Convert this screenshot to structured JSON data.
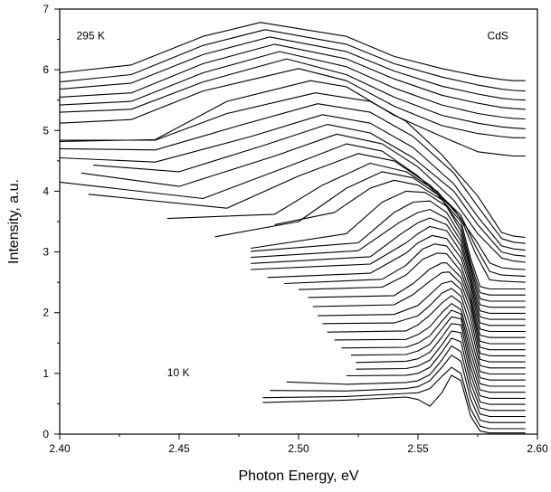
{
  "chart_data": {
    "type": "line",
    "xlabel": "Photon Energy, eV",
    "ylabel": "Intensity, a.u.",
    "xlim": [
      2.4,
      2.6
    ],
    "ylim": [
      0,
      7
    ],
    "x_ticks": [
      "2.40",
      "2.45",
      "2.50",
      "2.55",
      "2.60"
    ],
    "y_ticks": [
      "0",
      "1",
      "2",
      "3",
      "4",
      "5",
      "6",
      "7"
    ],
    "grid": false,
    "annotations": [
      {
        "text": "295 K",
        "x": 2.407,
        "y": 6.5
      },
      {
        "text": "CdS",
        "x": 2.579,
        "y": 6.5
      },
      {
        "text": "10 K",
        "x": 2.445,
        "y": 0.95
      }
    ],
    "series": [
      {
        "x": [
          2.485,
          2.52,
          2.545,
          2.55,
          2.555,
          2.56,
          2.564,
          2.568,
          2.572,
          2.576,
          2.58,
          2.585,
          2.59,
          2.595
        ],
        "y": [
          0.52,
          0.56,
          0.61,
          0.57,
          0.46,
          0.68,
          0.97,
          0.88,
          0.3,
          0.05,
          0.02,
          0.02,
          0.02,
          0.02
        ]
      },
      {
        "x": [
          2.485,
          2.52,
          2.545,
          2.55,
          2.555,
          2.56,
          2.564,
          2.568,
          2.572,
          2.576,
          2.58,
          2.585,
          2.59,
          2.595
        ],
        "y": [
          0.6,
          0.62,
          0.67,
          0.68,
          0.75,
          0.95,
          1.1,
          1.0,
          0.42,
          0.13,
          0.09,
          0.09,
          0.09,
          0.09
        ]
      },
      {
        "x": [
          2.488,
          2.52,
          2.545,
          2.55,
          2.555,
          2.56,
          2.564,
          2.568,
          2.572,
          2.576,
          2.58,
          2.585,
          2.59,
          2.595
        ],
        "y": [
          0.72,
          0.71,
          0.75,
          0.78,
          0.88,
          1.1,
          1.3,
          1.2,
          0.58,
          0.23,
          0.19,
          0.19,
          0.19,
          0.19
        ]
      },
      {
        "x": [
          2.495,
          2.52,
          2.545,
          2.55,
          2.555,
          2.56,
          2.564,
          2.568,
          2.572,
          2.576,
          2.58,
          2.585,
          2.59,
          2.595
        ],
        "y": [
          0.86,
          0.82,
          0.85,
          0.88,
          0.98,
          1.22,
          1.45,
          1.36,
          0.72,
          0.33,
          0.29,
          0.29,
          0.29,
          0.29
        ]
      },
      {
        "x": [
          2.52,
          2.545,
          2.55,
          2.555,
          2.56,
          2.564,
          2.568,
          2.572,
          2.576,
          2.58,
          2.585,
          2.59,
          2.595
        ],
        "y": [
          0.96,
          0.97,
          1.0,
          1.1,
          1.35,
          1.58,
          1.52,
          0.85,
          0.43,
          0.39,
          0.39,
          0.39,
          0.39
        ]
      },
      {
        "x": [
          2.524,
          2.545,
          2.55,
          2.555,
          2.56,
          2.564,
          2.568,
          2.572,
          2.576,
          2.58,
          2.585,
          2.59,
          2.595
        ],
        "y": [
          1.07,
          1.08,
          1.12,
          1.22,
          1.47,
          1.7,
          1.67,
          0.98,
          0.53,
          0.49,
          0.49,
          0.49,
          0.49
        ]
      },
      {
        "x": [
          2.524,
          2.545,
          2.55,
          2.555,
          2.56,
          2.564,
          2.568,
          2.572,
          2.576,
          2.58,
          2.585,
          2.59,
          2.595
        ],
        "y": [
          1.18,
          1.2,
          1.24,
          1.35,
          1.6,
          1.82,
          1.8,
          1.1,
          0.63,
          0.59,
          0.59,
          0.59,
          0.59
        ]
      },
      {
        "x": [
          2.522,
          2.545,
          2.55,
          2.555,
          2.56,
          2.564,
          2.568,
          2.572,
          2.576,
          2.58,
          2.585,
          2.59,
          2.595
        ],
        "y": [
          1.3,
          1.31,
          1.37,
          1.48,
          1.73,
          1.93,
          1.9,
          1.22,
          0.73,
          0.69,
          0.69,
          0.69,
          0.69
        ]
      },
      {
        "x": [
          2.518,
          2.545,
          2.55,
          2.555,
          2.56,
          2.564,
          2.568,
          2.572,
          2.576,
          2.58,
          2.585,
          2.59,
          2.595
        ],
        "y": [
          1.42,
          1.43,
          1.5,
          1.62,
          1.86,
          2.04,
          1.98,
          1.35,
          0.83,
          0.79,
          0.79,
          0.79,
          0.79
        ]
      },
      {
        "x": [
          2.515,
          2.545,
          2.55,
          2.555,
          2.56,
          2.564,
          2.568,
          2.572,
          2.576,
          2.58,
          2.585,
          2.59,
          2.595
        ],
        "y": [
          1.55,
          1.56,
          1.64,
          1.77,
          2.0,
          2.15,
          2.05,
          1.48,
          0.93,
          0.89,
          0.89,
          0.89,
          0.89
        ]
      },
      {
        "x": [
          2.512,
          2.545,
          2.55,
          2.555,
          2.56,
          2.564,
          2.568,
          2.572,
          2.576,
          2.58,
          2.585,
          2.59,
          2.595
        ],
        "y": [
          1.68,
          1.7,
          1.8,
          1.96,
          2.16,
          2.28,
          2.16,
          1.62,
          1.03,
          0.99,
          0.99,
          0.99,
          0.99
        ]
      },
      {
        "x": [
          2.51,
          2.54,
          2.55,
          2.555,
          2.56,
          2.564,
          2.568,
          2.572,
          2.576,
          2.58,
          2.585,
          2.59,
          2.595
        ],
        "y": [
          1.82,
          1.83,
          1.95,
          2.12,
          2.32,
          2.4,
          2.27,
          1.78,
          1.13,
          1.09,
          1.09,
          1.09,
          1.09
        ]
      },
      {
        "x": [
          2.508,
          2.54,
          2.55,
          2.555,
          2.56,
          2.564,
          2.568,
          2.572,
          2.576,
          2.58,
          2.585,
          2.59,
          2.595
        ],
        "y": [
          1.95,
          1.97,
          2.12,
          2.3,
          2.48,
          2.52,
          2.38,
          1.92,
          1.23,
          1.19,
          1.19,
          1.19,
          1.19
        ]
      },
      {
        "x": [
          2.506,
          2.54,
          2.548,
          2.555,
          2.56,
          2.563,
          2.568,
          2.572,
          2.576,
          2.58,
          2.585,
          2.59,
          2.595
        ],
        "y": [
          2.1,
          2.13,
          2.3,
          2.52,
          2.66,
          2.67,
          2.48,
          2.05,
          1.33,
          1.29,
          1.29,
          1.29,
          1.29
        ]
      },
      {
        "x": [
          2.504,
          2.54,
          2.548,
          2.555,
          2.56,
          2.562,
          2.568,
          2.572,
          2.576,
          2.58,
          2.585,
          2.59,
          2.595
        ],
        "y": [
          2.25,
          2.28,
          2.48,
          2.72,
          2.82,
          2.82,
          2.58,
          2.15,
          1.43,
          1.39,
          1.39,
          1.39,
          1.39
        ]
      },
      {
        "x": [
          2.5,
          2.535,
          2.545,
          2.552,
          2.558,
          2.562,
          2.568,
          2.572,
          2.576,
          2.58,
          2.585,
          2.59,
          2.595
        ],
        "y": [
          2.38,
          2.42,
          2.62,
          2.88,
          2.98,
          2.97,
          2.68,
          2.22,
          1.53,
          1.49,
          1.49,
          1.49,
          1.49
        ]
      },
      {
        "x": [
          2.494,
          2.535,
          2.545,
          2.552,
          2.557,
          2.562,
          2.568,
          2.572,
          2.576,
          2.58,
          2.585,
          2.59,
          2.595
        ],
        "y": [
          2.48,
          2.55,
          2.78,
          3.05,
          3.13,
          3.1,
          2.78,
          2.3,
          1.63,
          1.59,
          1.59,
          1.59,
          1.59
        ]
      },
      {
        "x": [
          2.487,
          2.53,
          2.545,
          2.55,
          2.556,
          2.562,
          2.568,
          2.572,
          2.576,
          2.58,
          2.585,
          2.59,
          2.595
        ],
        "y": [
          2.58,
          2.65,
          2.98,
          3.15,
          3.27,
          3.22,
          2.9,
          2.4,
          1.73,
          1.69,
          1.69,
          1.69,
          1.69
        ]
      },
      {
        "x": [
          2.48,
          2.53,
          2.545,
          2.55,
          2.555,
          2.562,
          2.568,
          2.572,
          2.576,
          2.58,
          2.585,
          2.59,
          2.595
        ],
        "y": [
          2.71,
          2.8,
          3.15,
          3.3,
          3.42,
          3.35,
          3.0,
          2.48,
          1.83,
          1.79,
          1.79,
          1.79,
          1.79
        ]
      },
      {
        "x": [
          2.48,
          2.53,
          2.543,
          2.55,
          2.555,
          2.562,
          2.568,
          2.572,
          2.576,
          2.58,
          2.585,
          2.59,
          2.595
        ],
        "y": [
          2.81,
          2.92,
          3.3,
          3.48,
          3.56,
          3.45,
          3.1,
          2.55,
          1.93,
          1.89,
          1.89,
          1.89,
          1.89
        ]
      },
      {
        "x": [
          2.48,
          2.525,
          2.542,
          2.55,
          2.555,
          2.562,
          2.568,
          2.572,
          2.576,
          2.58,
          2.585,
          2.59,
          2.595
        ],
        "y": [
          2.91,
          3.02,
          3.48,
          3.65,
          3.7,
          3.55,
          3.18,
          2.62,
          2.03,
          1.99,
          1.99,
          1.99,
          1.99
        ]
      },
      {
        "x": [
          2.48,
          2.525,
          2.54,
          2.548,
          2.555,
          2.562,
          2.568,
          2.572,
          2.576,
          2.58,
          2.585,
          2.59,
          2.595
        ],
        "y": [
          3.01,
          3.15,
          3.65,
          3.82,
          3.84,
          3.65,
          3.26,
          2.7,
          2.13,
          2.09,
          2.09,
          2.09,
          2.09
        ]
      },
      {
        "x": [
          2.48,
          2.52,
          2.535,
          2.545,
          2.553,
          2.562,
          2.568,
          2.572,
          2.576,
          2.58,
          2.585,
          2.59,
          2.595
        ],
        "y": [
          3.06,
          3.3,
          3.82,
          4.0,
          3.98,
          3.75,
          3.34,
          2.76,
          2.23,
          2.19,
          2.19,
          2.19,
          2.19
        ]
      },
      {
        "x": [
          2.49,
          2.515,
          2.53,
          2.54,
          2.55,
          2.56,
          2.568,
          2.572,
          2.576,
          2.58,
          2.585,
          2.59,
          2.595
        ],
        "y": [
          3.45,
          3.65,
          4.05,
          4.18,
          4.1,
          3.86,
          3.42,
          2.82,
          2.33,
          2.29,
          2.29,
          2.29,
          2.29
        ]
      },
      {
        "x": [
          2.465,
          2.5,
          2.52,
          2.535,
          2.548,
          2.558,
          2.568,
          2.572,
          2.576,
          2.58,
          2.585,
          2.59,
          2.595
        ],
        "y": [
          3.25,
          3.5,
          4.05,
          4.32,
          4.22,
          3.95,
          3.5,
          2.9,
          2.43,
          2.39,
          2.39,
          2.39,
          2.39
        ]
      },
      {
        "x": [
          2.445,
          2.49,
          2.51,
          2.53,
          2.545,
          2.558,
          2.568,
          2.574,
          2.58,
          2.585,
          2.59,
          2.595
        ],
        "y": [
          3.55,
          3.62,
          4.1,
          4.46,
          4.32,
          4.0,
          3.55,
          2.98,
          2.54,
          2.52,
          2.51,
          2.5
        ]
      },
      {
        "x": [
          2.412,
          2.47,
          2.5,
          2.525,
          2.54,
          2.555,
          2.568,
          2.574,
          2.58,
          2.585,
          2.59,
          2.595
        ],
        "y": [
          3.95,
          3.72,
          4.25,
          4.62,
          4.5,
          4.1,
          3.6,
          3.1,
          2.68,
          2.62,
          2.61,
          2.6
        ]
      },
      {
        "x": [
          2.4,
          2.46,
          2.495,
          2.52,
          2.535,
          2.55,
          2.565,
          2.574,
          2.58,
          2.585,
          2.59,
          2.595
        ],
        "y": [
          4.15,
          3.88,
          4.4,
          4.78,
          4.66,
          4.25,
          3.7,
          3.2,
          2.82,
          2.74,
          2.72,
          2.71
        ]
      },
      {
        "x": [
          2.409,
          2.45,
          2.49,
          2.516,
          2.535,
          2.55,
          2.565,
          2.575,
          2.585,
          2.59,
          2.595
        ],
        "y": [
          4.3,
          4.08,
          4.58,
          4.94,
          4.78,
          4.4,
          3.85,
          3.3,
          2.9,
          2.85,
          2.83
        ]
      },
      {
        "x": [
          2.414,
          2.45,
          2.485,
          2.512,
          2.53,
          2.548,
          2.565,
          2.575,
          2.585,
          2.59,
          2.595
        ],
        "y": [
          4.43,
          4.32,
          4.75,
          5.1,
          4.96,
          4.55,
          4.0,
          3.45,
          3.0,
          2.95,
          2.93
        ]
      },
      {
        "x": [
          2.4,
          2.44,
          2.48,
          2.51,
          2.53,
          2.548,
          2.565,
          2.575,
          2.585,
          2.59,
          2.595
        ],
        "y": [
          4.55,
          4.48,
          4.9,
          5.26,
          5.12,
          4.72,
          4.12,
          3.58,
          3.1,
          3.05,
          3.03
        ]
      },
      {
        "x": [
          2.4,
          2.44,
          2.475,
          2.508,
          2.53,
          2.548,
          2.565,
          2.575,
          2.585,
          2.59,
          2.595
        ],
        "y": [
          4.7,
          4.68,
          5.08,
          5.44,
          5.3,
          4.9,
          4.3,
          3.75,
          3.22,
          3.16,
          3.14
        ]
      },
      {
        "x": [
          2.4,
          2.44,
          2.47,
          2.507,
          2.53,
          2.545,
          2.56,
          2.575,
          2.585,
          2.59,
          2.595
        ],
        "y": [
          4.84,
          4.84,
          5.28,
          5.62,
          5.48,
          5.15,
          4.6,
          3.92,
          3.32,
          3.26,
          3.24
        ]
      },
      {
        "x": [
          2.4,
          2.44,
          2.47,
          2.505,
          2.52,
          2.54,
          2.56,
          2.575,
          2.585,
          2.59,
          2.595
        ],
        "y": [
          4.82,
          4.85,
          5.48,
          5.82,
          5.72,
          5.25,
          4.9,
          4.65,
          4.6,
          4.58,
          4.58
        ]
      },
      {
        "x": [
          2.4,
          2.43,
          2.46,
          2.5,
          2.52,
          2.54,
          2.56,
          2.575,
          2.585,
          2.59,
          2.595
        ],
        "y": [
          5.12,
          5.18,
          5.65,
          6.02,
          5.82,
          5.4,
          5.08,
          4.95,
          4.9,
          4.88,
          4.88
        ]
      },
      {
        "x": [
          2.4,
          2.43,
          2.46,
          2.495,
          2.52,
          2.54,
          2.56,
          2.575,
          2.585,
          2.59,
          2.595
        ],
        "y": [
          5.3,
          5.35,
          5.8,
          6.18,
          5.92,
          5.55,
          5.25,
          5.12,
          5.06,
          5.04,
          5.03
        ]
      },
      {
        "x": [
          2.4,
          2.43,
          2.46,
          2.492,
          2.52,
          2.54,
          2.56,
          2.575,
          2.585,
          2.59,
          2.595
        ],
        "y": [
          5.42,
          5.48,
          5.95,
          6.3,
          6.05,
          5.7,
          5.42,
          5.28,
          5.22,
          5.2,
          5.19
        ]
      },
      {
        "x": [
          2.4,
          2.43,
          2.46,
          2.49,
          2.52,
          2.54,
          2.56,
          2.575,
          2.585,
          2.59,
          2.595
        ],
        "y": [
          5.55,
          5.62,
          6.1,
          6.42,
          6.18,
          5.85,
          5.58,
          5.45,
          5.38,
          5.36,
          5.35
        ]
      },
      {
        "x": [
          2.4,
          2.43,
          2.46,
          2.488,
          2.52,
          2.54,
          2.56,
          2.575,
          2.585,
          2.59,
          2.595
        ],
        "y": [
          5.68,
          5.78,
          6.25,
          6.54,
          6.3,
          5.98,
          5.73,
          5.6,
          5.53,
          5.51,
          5.5
        ]
      },
      {
        "x": [
          2.4,
          2.43,
          2.46,
          2.486,
          2.52,
          2.54,
          2.56,
          2.575,
          2.585,
          2.59,
          2.595
        ],
        "y": [
          5.8,
          5.92,
          6.4,
          6.66,
          6.42,
          6.1,
          5.88,
          5.75,
          5.68,
          5.66,
          5.65
        ]
      },
      {
        "x": [
          2.4,
          2.43,
          2.46,
          2.484,
          2.52,
          2.54,
          2.56,
          2.575,
          2.585,
          2.59,
          2.595
        ],
        "y": [
          5.95,
          6.08,
          6.55,
          6.78,
          6.55,
          6.22,
          6.02,
          5.9,
          5.84,
          5.82,
          5.82
        ]
      }
    ]
  }
}
